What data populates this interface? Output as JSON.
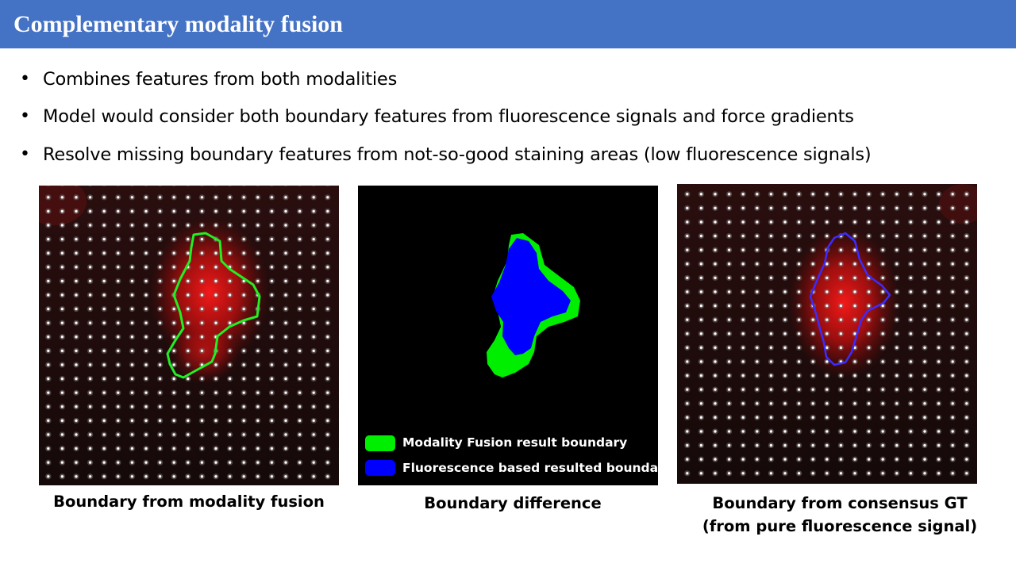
{
  "slide": {
    "title": "Complementary modality fusion",
    "bullets": [
      "Combines features from both modalities",
      "Model would consider both boundary features from fluorescence signals and force gradients",
      "Resolve missing boundary features from not-so-good staining areas (low fluorescence signals)"
    ],
    "bullet_marker": "•"
  },
  "panels": {
    "fusion": {
      "caption": "Boundary from modality fusion",
      "boundary_color": "#22ee22"
    },
    "difference": {
      "caption": "Boundary difference",
      "legend": [
        {
          "label": "Modality Fusion result boundary",
          "color": "#00ee00"
        },
        {
          "label": "Fluorescence based resulted boundary",
          "color": "#0000ff"
        }
      ]
    },
    "consensus": {
      "caption_line1": "Boundary from consensus GT",
      "caption_line2": "(from pure fluorescence signal)",
      "boundary_color": "#3a2cff"
    }
  },
  "colors": {
    "title_bar": "#4472c4",
    "cell_signal": "#ff1a1a",
    "background_dark": "#1a0b0b"
  }
}
